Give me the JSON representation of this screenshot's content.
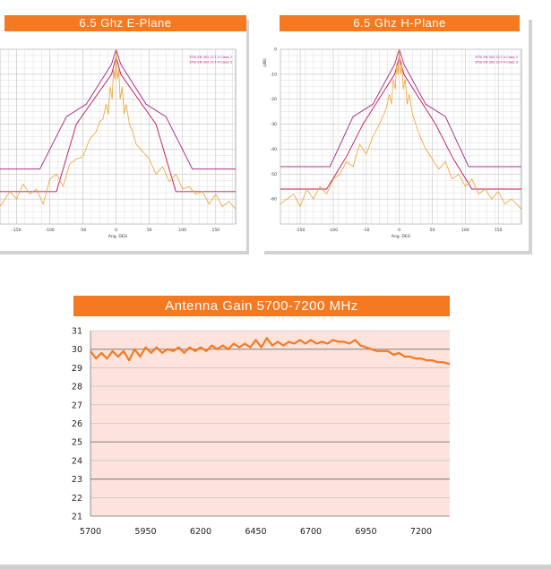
{
  "colors": {
    "accent": "#f47920",
    "mask": "#c0145a",
    "mask_upper": "#a0208a",
    "trace": "#f0a030",
    "gain_fill": "#fde3dc"
  },
  "chart_data": [
    {
      "type": "line",
      "title": "6.5 Ghz E-Plane",
      "xlabel": "Ang. DEG",
      "ylabel": "",
      "xlim": [
        -175,
        180
      ],
      "ylim": [
        -70,
        0
      ],
      "xticks": [
        -150,
        -100,
        -50,
        0,
        50,
        100,
        150
      ],
      "yticks": [],
      "legend": [
        "ETSI EN 302 217-4 Class 2",
        "ETSI EN 302 217-4 Class 3"
      ],
      "legend_position": "top-right",
      "grid": true,
      "series": [
        {
          "name": "ETSI EN 302 217-4 Class 2",
          "x": [
            -175,
            -115,
            -75,
            -45,
            -7,
            0,
            7,
            45,
            75,
            115,
            180
          ],
          "y": [
            -48,
            -48,
            -27,
            -22,
            -6,
            0,
            -6,
            -22,
            -27,
            -48,
            -48
          ]
        },
        {
          "name": "ETSI EN 302 217-4 Class 3",
          "x": [
            -175,
            -90,
            -60,
            -7,
            0,
            7,
            60,
            90,
            180
          ],
          "y": [
            -57,
            -57,
            -30,
            -10,
            -3,
            -10,
            -30,
            -57,
            -57
          ]
        },
        {
          "name": "",
          "x": [
            -175,
            -160,
            -150,
            -140,
            -130,
            -120,
            -110,
            -100,
            -90,
            -80,
            -70,
            -60,
            -50,
            -40,
            -30,
            -25,
            -20,
            -15,
            -12,
            -9,
            -6,
            -4,
            -2,
            0,
            2,
            4,
            6,
            9,
            12,
            15,
            20,
            25,
            30,
            40,
            50,
            60,
            70,
            80,
            90,
            100,
            110,
            120,
            130,
            140,
            150,
            160,
            170,
            180
          ],
          "y": [
            -63,
            -57,
            -60,
            -54,
            -58,
            -56,
            -62,
            -52,
            -50,
            -55,
            -46,
            -44,
            -43,
            -36,
            -33,
            -29,
            -28,
            -22,
            -26,
            -15,
            -20,
            -8,
            -12,
            0,
            -12,
            -8,
            -20,
            -15,
            -26,
            -22,
            -30,
            -33,
            -38,
            -41,
            -44,
            -50,
            -47,
            -53,
            -50,
            -56,
            -55,
            -58,
            -57,
            -62,
            -58,
            -63,
            -61,
            -64
          ]
        }
      ]
    },
    {
      "type": "line",
      "title": "6.5 Ghz H-Plane",
      "xlabel": "Ang. DEG",
      "ylabel": "(dB)",
      "xlim": [
        -180,
        185
      ],
      "ylim": [
        -70,
        0
      ],
      "xticks": [
        -150,
        -100,
        -50,
        0,
        50,
        100,
        150
      ],
      "yticks": [
        0,
        -10,
        -20,
        -30,
        -40,
        -50,
        -60
      ],
      "legend": [
        "ETSI EN 302 217-4 Class 2",
        "ETSI EN 302 217-4 Class 3"
      ],
      "legend_position": "top-right",
      "grid": true,
      "series": [
        {
          "name": "ETSI EN 302 217-4 Class 2",
          "x": [
            -180,
            -105,
            -70,
            -40,
            -7,
            0,
            7,
            40,
            70,
            105,
            185
          ],
          "y": [
            -47,
            -47,
            -27,
            -22,
            -6,
            0,
            -6,
            -22,
            -27,
            -47,
            -47
          ]
        },
        {
          "name": "ETSI EN 302 217-4 Class 3",
          "x": [
            -180,
            -110,
            -80,
            -55,
            -7,
            0,
            7,
            55,
            80,
            110,
            185
          ],
          "y": [
            -56,
            -56,
            -43,
            -30,
            -10,
            -3,
            -10,
            -30,
            -43,
            -56,
            -56
          ]
        },
        {
          "name": "",
          "x": [
            -180,
            -170,
            -160,
            -150,
            -140,
            -130,
            -120,
            -110,
            -100,
            -90,
            -80,
            -70,
            -60,
            -50,
            -40,
            -30,
            -25,
            -20,
            -15,
            -12,
            -9,
            -6,
            -4,
            -2,
            0,
            2,
            4,
            6,
            9,
            12,
            15,
            20,
            25,
            30,
            40,
            50,
            60,
            70,
            80,
            90,
            100,
            110,
            120,
            130,
            140,
            150,
            160,
            170,
            185
          ],
          "y": [
            -62,
            -60,
            -58,
            -63,
            -56,
            -60,
            -55,
            -58,
            -52,
            -50,
            -45,
            -47,
            -38,
            -42,
            -35,
            -30,
            -27,
            -24,
            -18,
            -22,
            -12,
            -16,
            -6,
            -10,
            0,
            -10,
            -6,
            -16,
            -12,
            -22,
            -18,
            -26,
            -30,
            -34,
            -40,
            -44,
            -48,
            -45,
            -52,
            -50,
            -55,
            -52,
            -58,
            -56,
            -60,
            -57,
            -62,
            -60,
            -64
          ]
        }
      ]
    },
    {
      "type": "line",
      "title": "Antenna Gain 5700-7200 MHz",
      "xlabel": "",
      "ylabel": "",
      "xlim": [
        5700,
        7330
      ],
      "ylim": [
        21,
        31
      ],
      "xticks": [
        5700,
        5950,
        6200,
        6450,
        6700,
        6950,
        7200
      ],
      "yticks": [
        21,
        22,
        23,
        24,
        25,
        26,
        27,
        28,
        29,
        30,
        31
      ],
      "grid": true,
      "series": [
        {
          "name": "",
          "x": [
            5700,
            5725,
            5750,
            5775,
            5800,
            5825,
            5850,
            5875,
            5900,
            5925,
            5950,
            5975,
            6000,
            6025,
            6050,
            6075,
            6100,
            6125,
            6150,
            6175,
            6200,
            6225,
            6250,
            6275,
            6300,
            6325,
            6350,
            6375,
            6400,
            6425,
            6450,
            6475,
            6500,
            6525,
            6550,
            6575,
            6600,
            6625,
            6650,
            6675,
            6700,
            6725,
            6750,
            6775,
            6800,
            6825,
            6850,
            6875,
            6900,
            6925,
            6950,
            6975,
            7000,
            7025,
            7050,
            7075,
            7100,
            7125,
            7150,
            7175,
            7200,
            7225,
            7250,
            7275,
            7300,
            7330
          ],
          "y": [
            29.9,
            29.5,
            29.8,
            29.5,
            29.9,
            29.6,
            29.9,
            29.4,
            30.0,
            29.6,
            30.1,
            29.8,
            30.1,
            29.8,
            30.0,
            29.9,
            30.1,
            29.8,
            30.1,
            29.9,
            30.1,
            29.9,
            30.2,
            30.0,
            30.2,
            30.0,
            30.3,
            30.1,
            30.3,
            30.1,
            30.5,
            30.1,
            30.6,
            30.2,
            30.4,
            30.2,
            30.4,
            30.3,
            30.5,
            30.3,
            30.5,
            30.3,
            30.4,
            30.3,
            30.5,
            30.4,
            30.4,
            30.3,
            30.5,
            30.2,
            30.1,
            30.0,
            29.9,
            29.9,
            29.9,
            29.7,
            29.8,
            29.6,
            29.6,
            29.5,
            29.5,
            29.4,
            29.4,
            29.3,
            29.3,
            29.2
          ]
        }
      ]
    }
  ]
}
